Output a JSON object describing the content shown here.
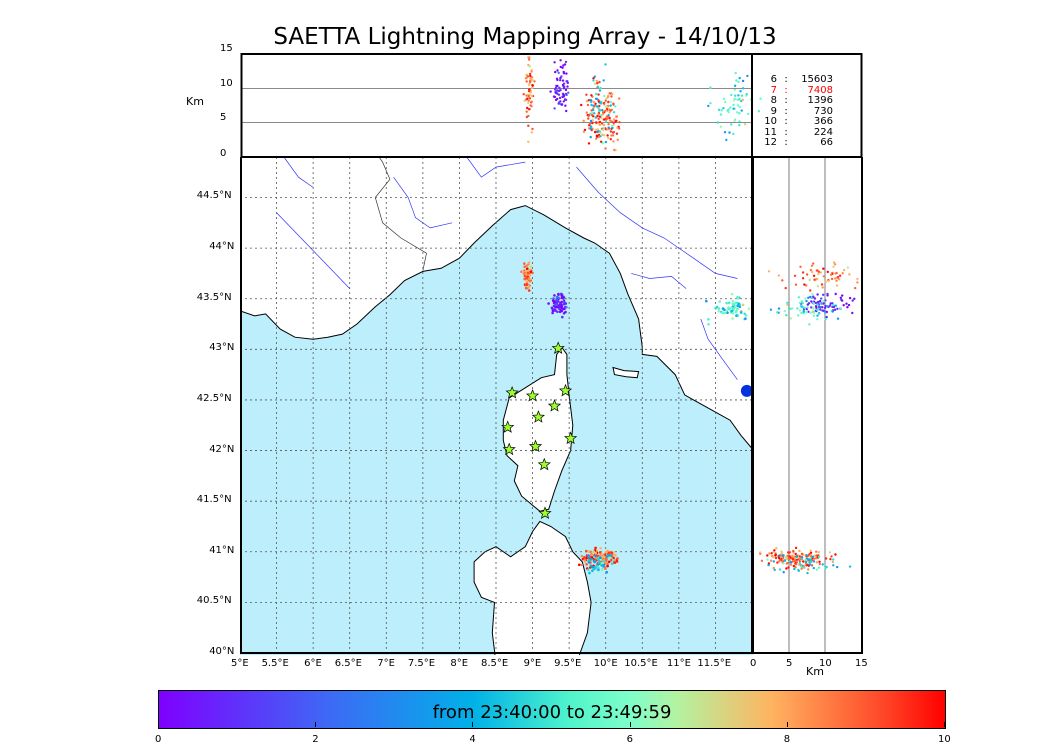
{
  "title": "SAETTA Lightning Mapping Array - 14/10/13",
  "colors": {
    "sea": "#bdeefb",
    "land": "#ffffff",
    "river": "#3333ff",
    "border": "#333333"
  },
  "top_panel": {
    "ylabel": "Km",
    "yticks": [
      "0",
      "5",
      "10",
      "15"
    ]
  },
  "side_panel": {
    "xlabel": "Km",
    "xticks": [
      "0",
      "5",
      "10",
      "15"
    ]
  },
  "station_counts": [
    {
      "stations": "6",
      "sep": ":",
      "count": "15603",
      "highlight": false
    },
    {
      "stations": "7",
      "sep": ":",
      "count": "7408",
      "highlight": true
    },
    {
      "stations": "8",
      "sep": ":",
      "count": "1396",
      "highlight": false
    },
    {
      "stations": "9",
      "sep": ":",
      "count": "730",
      "highlight": false
    },
    {
      "stations": "10",
      "sep": ":",
      "count": "366",
      "highlight": false
    },
    {
      "stations": "11",
      "sep": ":",
      "count": "224",
      "highlight": false
    },
    {
      "stations": "12",
      "sep": ":",
      "count": "66",
      "highlight": false
    }
  ],
  "colorbar": {
    "caption": "from 23:40:00 to 23:49:59",
    "ticks": [
      "0",
      "2",
      "4",
      "6",
      "8",
      "10"
    ],
    "min": 0,
    "max": 10
  },
  "chart_data": {
    "type": "scatter",
    "title": "SAETTA Lightning Mapping Array - 14/10/13",
    "lon_ticks": [
      "5°E",
      "5.5°E",
      "6°E",
      "6.5°E",
      "7°E",
      "7.5°E",
      "8°E",
      "8.5°E",
      "9°E",
      "9.5°E",
      "10°E",
      "10.5°E",
      "11°E",
      "11.5°E"
    ],
    "lat_ticks": [
      "40°N",
      "40.5°N",
      "41°N",
      "41.5°N",
      "42°N",
      "42.5°N",
      "43°N",
      "43.5°N",
      "44°N",
      "44.5°N"
    ],
    "lon_range": [
      5,
      12
    ],
    "lat_range": [
      40,
      44.9
    ],
    "alt_range_km": [
      0,
      15
    ],
    "color_range_min": [
      0,
      10
    ],
    "grid": true,
    "stations": [
      {
        "lon": 9.35,
        "lat": 43.01
      },
      {
        "lon": 8.72,
        "lat": 42.57
      },
      {
        "lon": 9.0,
        "lat": 42.54
      },
      {
        "lon": 9.45,
        "lat": 42.59
      },
      {
        "lon": 9.3,
        "lat": 42.44
      },
      {
        "lon": 9.08,
        "lat": 42.33
      },
      {
        "lon": 8.66,
        "lat": 42.23
      },
      {
        "lon": 9.52,
        "lat": 42.12
      },
      {
        "lon": 9.04,
        "lat": 42.04
      },
      {
        "lon": 8.68,
        "lat": 42.01
      },
      {
        "lon": 9.16,
        "lat": 41.86
      },
      {
        "lon": 9.17,
        "lat": 41.38
      }
    ],
    "clusters": [
      {
        "lon": 8.93,
        "lat": 43.71,
        "alt_km": 9.5,
        "alt_spread": 2.8,
        "t_min": 8.7,
        "dlon": 0.03,
        "dlat": 0.06,
        "n": 60
      },
      {
        "lon": 9.37,
        "lat": 43.44,
        "alt_km": 10.3,
        "alt_spread": 1.8,
        "t_min": 0.4,
        "dlon": 0.06,
        "dlat": 0.05,
        "n": 70
      },
      {
        "lon": 9.87,
        "lat": 40.93,
        "alt_km": 5.8,
        "alt_spread": 2.3,
        "t_min": 8.9,
        "dlon": 0.1,
        "dlat": 0.05,
        "n": 110
      },
      {
        "lon": 10.05,
        "lat": 40.94,
        "alt_km": 6.0,
        "alt_spread": 2.0,
        "t_min": 8.8,
        "dlon": 0.05,
        "dlat": 0.04,
        "n": 45
      },
      {
        "lon": 9.9,
        "lat": 40.88,
        "alt_km": 7.0,
        "alt_spread": 2.5,
        "t_min": 4.5,
        "dlon": 0.1,
        "dlat": 0.05,
        "n": 50
      },
      {
        "lon": 11.72,
        "lat": 43.4,
        "alt_km": 8.0,
        "alt_spread": 2.5,
        "t_min": 5.2,
        "dlon": 0.18,
        "dlat": 0.06,
        "n": 60
      }
    ]
  }
}
